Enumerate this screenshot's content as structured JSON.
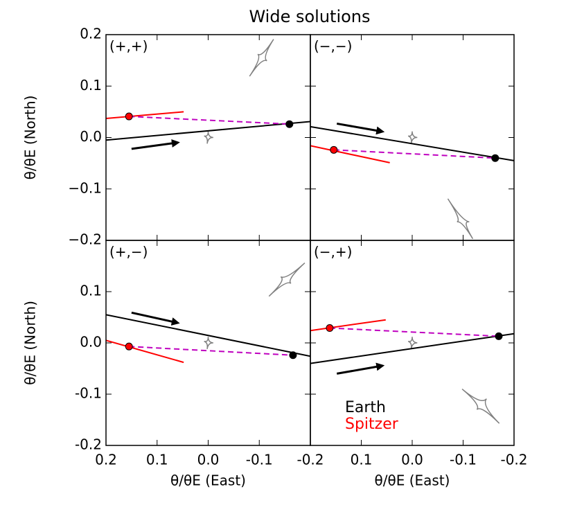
{
  "title": "Wide solutions",
  "chart_data": [
    {
      "type": "line",
      "label": "(+,+)",
      "xlim": [
        0.2,
        -0.2
      ],
      "ylim": [
        -0.2,
        0.2
      ],
      "xticks": [
        0.2,
        0.1,
        0,
        -0.1,
        -0.2
      ],
      "yticks": [
        0.2,
        0.1,
        {
          "value": 0,
          "label": "0.0"
        },
        {
          "value": -0.1,
          "label": "−0.1"
        },
        {
          "value": -0.2,
          "label": "−0.2"
        }
      ],
      "ylabel": "θ/θE (North)",
      "series": [
        {
          "color": "#000000",
          "x": [
            0.2,
            -0.2
          ],
          "y": [
            -0.005,
            0.031
          ]
        },
        {
          "color": "#ff0000",
          "x": [
            0.2,
            0.048
          ],
          "y": [
            0.037,
            0.05
          ]
        }
      ],
      "points": [
        {
          "color": "#000000",
          "x": -0.159,
          "y": 0.026
        },
        {
          "color": "#ff0000",
          "x": 0.155,
          "y": 0.041
        }
      ],
      "link_color": "#bf00bf",
      "arrow": {
        "x": [
          0.15,
          0.068
        ],
        "y": [
          -0.022,
          -0.011
        ]
      },
      "caustics": [
        {
          "color": "#808080",
          "x": [
            0.0,
            -0.01,
            0.002,
            0.008
          ],
          "y": [
            0.012,
            0.0,
            -0.012,
            0.003
          ]
        },
        {
          "color": "#808080",
          "x": [
            -0.081,
            -0.097,
            -0.128,
            -0.115
          ],
          "y": [
            0.119,
            0.162,
            0.191,
            0.149
          ]
        }
      ]
    },
    {
      "type": "line",
      "label": "(−,−)",
      "xlim": [
        0.2,
        -0.2
      ],
      "ylim": [
        -0.2,
        0.2
      ],
      "xticks": [
        0.2,
        0.1,
        0,
        -0.1,
        -0.2
      ],
      "yticks": [
        0.2,
        0.1,
        0,
        -0.1,
        -0.2
      ],
      "series": [
        {
          "color": "#000000",
          "x": [
            0.2,
            -0.2
          ],
          "y": [
            0.021,
            -0.045
          ]
        },
        {
          "color": "#ff0000",
          "x": [
            0.2,
            0.044
          ],
          "y": [
            -0.016,
            -0.049
          ]
        }
      ],
      "points": [
        {
          "color": "#000000",
          "x": -0.163,
          "y": -0.04
        },
        {
          "color": "#ff0000",
          "x": 0.154,
          "y": -0.024
        }
      ],
      "link_color": "#bf00bf",
      "arrow": {
        "x": [
          0.148,
          0.067
        ],
        "y": [
          0.027,
          0.013
        ]
      },
      "caustics": [
        {
          "color": "#808080",
          "x": [
            0.0,
            -0.01,
            0.002,
            0.008
          ],
          "y": [
            0.012,
            0.0,
            -0.012,
            0.003
          ]
        },
        {
          "color": "#808080",
          "x": [
            -0.07,
            -0.088,
            -0.119,
            -0.112
          ],
          "y": [
            -0.119,
            -0.164,
            -0.197,
            -0.164
          ]
        }
      ]
    },
    {
      "type": "line",
      "label": "(+,−)",
      "xlim": [
        0.2,
        -0.2
      ],
      "ylim": [
        -0.2,
        0.2
      ],
      "xticks": [
        0.2,
        0.1,
        {
          "value": 0,
          "label": "0.0"
        },
        -0.1,
        -0.2
      ],
      "yticks": [
        0.1,
        {
          "value": 0,
          "label": "0.0"
        },
        -0.1,
        -0.2
      ],
      "xlabel": "θ/θE (East)",
      "ylabel": "θ/θE (North)",
      "series": [
        {
          "color": "#000000",
          "x": [
            0.2,
            -0.2
          ],
          "y": [
            0.055,
            -0.026
          ]
        },
        {
          "color": "#ff0000",
          "x": [
            0.2,
            0.048
          ],
          "y": [
            0.005,
            -0.038
          ]
        }
      ],
      "points": [
        {
          "color": "#000000",
          "x": -0.166,
          "y": -0.024
        },
        {
          "color": "#ff0000",
          "x": 0.155,
          "y": -0.007
        }
      ],
      "link_color": "#bf00bf",
      "arrow": {
        "x": [
          0.15,
          0.068
        ],
        "y": [
          0.059,
          0.041
        ]
      },
      "caustics": [
        {
          "color": "#808080",
          "x": [
            0.0,
            -0.01,
            0.002,
            0.008
          ],
          "y": [
            0.012,
            0.0,
            -0.012,
            0.003
          ]
        },
        {
          "color": "#808080",
          "x": [
            -0.119,
            -0.142,
            -0.189,
            -0.162
          ],
          "y": [
            0.091,
            0.129,
            0.156,
            0.116
          ]
        }
      ]
    },
    {
      "type": "line",
      "label": "(−,+)",
      "xlim": [
        0.2,
        -0.2
      ],
      "ylim": [
        -0.2,
        0.2
      ],
      "xticks": [
        0.1,
        {
          "value": 0,
          "label": "0.0"
        },
        -0.1,
        -0.2
      ],
      "yticks": [
        0.2,
        0.1,
        0,
        -0.1,
        -0.2
      ],
      "xlabel": "θ/θE (East)",
      "legend": "lower left",
      "series": [
        {
          "name": "Earth",
          "color": "#000000",
          "x": [
            0.2,
            -0.2
          ],
          "y": [
            -0.04,
            0.018
          ]
        },
        {
          "name": "Spitzer",
          "color": "#ff0000",
          "x": [
            0.2,
            0.052
          ],
          "y": [
            0.024,
            0.045
          ]
        }
      ],
      "points": [
        {
          "color": "#000000",
          "x": -0.17,
          "y": 0.013
        },
        {
          "color": "#ff0000",
          "x": 0.162,
          "y": 0.029
        }
      ],
      "link_color": "#bf00bf",
      "arrow": {
        "x": [
          0.148,
          0.067
        ],
        "y": [
          -0.06,
          -0.046
        ]
      },
      "caustics": [
        {
          "color": "#808080",
          "x": [
            0.0,
            -0.01,
            0.002,
            0.008
          ],
          "y": [
            0.012,
            0.0,
            -0.012,
            0.003
          ]
        },
        {
          "color": "#808080",
          "x": [
            -0.098,
            -0.127,
            -0.171,
            -0.146
          ],
          "y": [
            -0.09,
            -0.13,
            -0.157,
            -0.109
          ]
        }
      ]
    }
  ]
}
